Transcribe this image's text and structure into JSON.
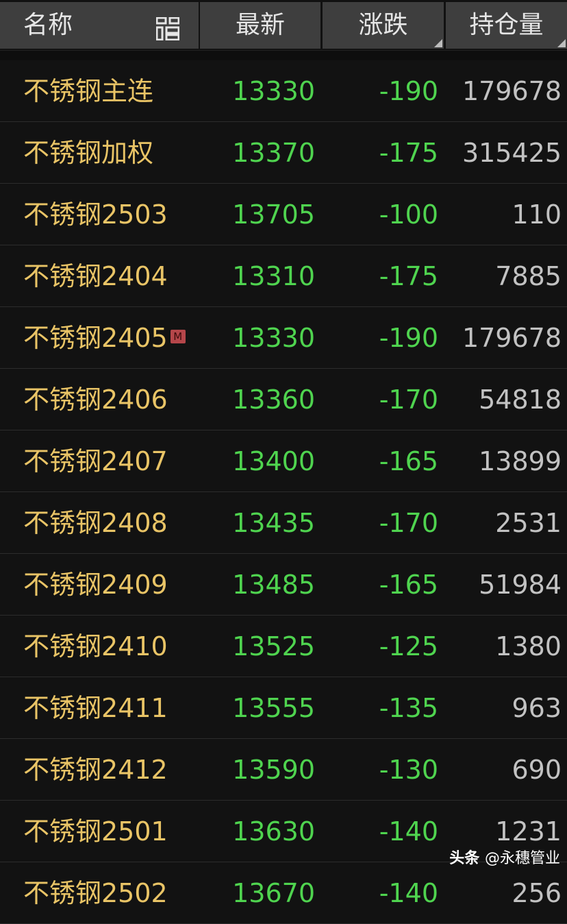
{
  "header": {
    "name": "名称",
    "last": "最新",
    "change": "涨跌",
    "open_interest": "持仓量"
  },
  "colors": {
    "name": "#e9c466",
    "down": "#4fd44f",
    "neutral": "#c2c2c2",
    "header_bg": "#3e3e3e",
    "badge": "#b5464a"
  },
  "rows": [
    {
      "name": "不锈钢主连",
      "last": "13330",
      "change": "-190",
      "oi": "179678"
    },
    {
      "name": "不锈钢加权",
      "last": "13370",
      "change": "-175",
      "oi": "315425"
    },
    {
      "name": "不锈钢2503",
      "last": "13705",
      "change": "-100",
      "oi": "110"
    },
    {
      "name": "不锈钢2404",
      "last": "13310",
      "change": "-175",
      "oi": "7885"
    },
    {
      "name": "不锈钢2405",
      "badge": "M",
      "last": "13330",
      "change": "-190",
      "oi": "179678"
    },
    {
      "name": "不锈钢2406",
      "last": "13360",
      "change": "-170",
      "oi": "54818"
    },
    {
      "name": "不锈钢2407",
      "last": "13400",
      "change": "-165",
      "oi": "13899"
    },
    {
      "name": "不锈钢2408",
      "last": "13435",
      "change": "-170",
      "oi": "2531"
    },
    {
      "name": "不锈钢2409",
      "last": "13485",
      "change": "-165",
      "oi": "51984"
    },
    {
      "name": "不锈钢2410",
      "last": "13525",
      "change": "-125",
      "oi": "1380"
    },
    {
      "name": "不锈钢2411",
      "last": "13555",
      "change": "-135",
      "oi": "963"
    },
    {
      "name": "不锈钢2412",
      "last": "13590",
      "change": "-130",
      "oi": "690"
    },
    {
      "name": "不锈钢2501",
      "last": "13630",
      "change": "-140",
      "oi": "1231"
    },
    {
      "name": "不锈钢2502",
      "last": "13670",
      "change": "-140",
      "oi": "256"
    }
  ],
  "watermark": {
    "brand": "头条",
    "handle": "@永穗管业"
  }
}
